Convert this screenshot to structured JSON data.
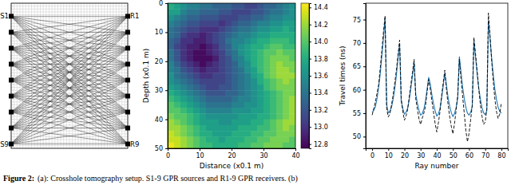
{
  "chart_data": [
    {
      "type": "crosshole",
      "xlim": [
        0,
        40
      ],
      "ylim": [
        0,
        50
      ],
      "grid": true,
      "tick_labels": false,
      "xticks": [
        0,
        1,
        2,
        3,
        4,
        5,
        6,
        7,
        8,
        9,
        10,
        11,
        12,
        13,
        14,
        15,
        16,
        17,
        18,
        19,
        20,
        21,
        22,
        23,
        24,
        25,
        26,
        27,
        28,
        29,
        30,
        31,
        32,
        33,
        34,
        35,
        36,
        37,
        38,
        39,
        40
      ],
      "yticks": [
        0,
        1,
        2,
        3,
        4,
        5,
        6,
        7,
        8,
        9,
        10,
        11,
        12,
        13,
        14,
        15,
        16,
        17,
        18,
        19,
        20,
        21,
        22,
        23,
        24,
        25,
        26,
        27,
        28,
        29,
        30,
        31,
        32,
        33,
        34,
        35,
        36,
        37,
        38,
        39,
        40,
        41,
        42,
        43,
        44,
        45,
        46,
        47,
        48,
        49,
        50
      ],
      "sources": [
        {
          "label": "S1",
          "depth": 4.5
        },
        {
          "label": null,
          "depth": 10
        },
        {
          "label": null,
          "depth": 15.5
        },
        {
          "label": null,
          "depth": 21
        },
        {
          "label": null,
          "depth": 26.5
        },
        {
          "label": null,
          "depth": 32
        },
        {
          "label": null,
          "depth": 37.5
        },
        {
          "label": null,
          "depth": 43
        },
        {
          "label": "S9",
          "depth": 48.5
        }
      ],
      "receivers": [
        {
          "label": "R1",
          "depth": 4.5
        },
        {
          "label": null,
          "depth": 10
        },
        {
          "label": null,
          "depth": 15.5
        },
        {
          "label": null,
          "depth": 21
        },
        {
          "label": null,
          "depth": 26.5
        },
        {
          "label": null,
          "depth": 32
        },
        {
          "label": null,
          "depth": 37.5
        },
        {
          "label": null,
          "depth": 43
        },
        {
          "label": "R9",
          "depth": 48.5
        }
      ]
    },
    {
      "type": "heatmap",
      "xlabel": "Distance (x0.1 m)",
      "ylabel": "Depth (x0.1 m)",
      "xlim": [
        0,
        40
      ],
      "ylim": [
        0,
        50
      ],
      "xticks": [
        0,
        10,
        20,
        30,
        40
      ],
      "yticks": [
        0,
        10,
        20,
        30,
        40,
        50
      ],
      "colorbar": {
        "range": [
          12.75,
          14.45
        ],
        "ticks": [
          12.8,
          {
            "value": 13,
            "label": "13.0"
          },
          13.2,
          13.4,
          13.6,
          13.8,
          {
            "value": 14,
            "label": "14.0"
          },
          14.2,
          14.4
        ]
      },
      "cells": [
        [
          13.8,
          13.7,
          13.6,
          13.5,
          13.5,
          13.4,
          13.4,
          13.3,
          13.3,
          13.3,
          13.2,
          13.2,
          13.1,
          13.1,
          13.2,
          13.3,
          13.3,
          13.4,
          13.5,
          13.6
        ],
        [
          13.7,
          13.7,
          13.5,
          13.4,
          13.4,
          13.3,
          13.3,
          13.3,
          13.2,
          13.2,
          13.1,
          13.1,
          13.1,
          13.2,
          13.2,
          13.3,
          13.4,
          13.4,
          13.5,
          13.6
        ],
        [
          13.6,
          13.5,
          13.4,
          13.3,
          13.3,
          13.2,
          13.2,
          13.2,
          13.1,
          13.1,
          13.1,
          13.2,
          13.2,
          13.3,
          13.3,
          13.4,
          13.5,
          13.5,
          13.6,
          13.6
        ],
        [
          13.5,
          13.4,
          13.3,
          13.2,
          13.2,
          13.1,
          13.1,
          13.1,
          13.0,
          13.1,
          13.2,
          13.3,
          13.3,
          13.4,
          13.5,
          13.5,
          13.6,
          13.6,
          13.7,
          13.7
        ],
        [
          13.4,
          13.3,
          13.2,
          13.1,
          13.1,
          13.0,
          13.0,
          13.0,
          13.1,
          13.2,
          13.3,
          13.4,
          13.4,
          13.5,
          13.6,
          13.6,
          13.7,
          13.7,
          13.8,
          13.7
        ],
        [
          13.4,
          13.3,
          13.1,
          13.0,
          13.0,
          12.9,
          13.0,
          13.1,
          13.2,
          13.3,
          13.4,
          13.5,
          13.5,
          13.6,
          13.7,
          13.7,
          13.8,
          13.8,
          13.8,
          13.8
        ],
        [
          13.3,
          13.2,
          13.0,
          13.0,
          12.9,
          12.9,
          13.0,
          13.1,
          13.2,
          13.4,
          13.5,
          13.5,
          13.6,
          13.7,
          13.8,
          13.8,
          13.9,
          13.9,
          13.9,
          13.8
        ],
        [
          13.3,
          13.1,
          13.0,
          12.9,
          12.9,
          12.8,
          12.9,
          13.0,
          13.2,
          13.3,
          13.5,
          13.6,
          13.7,
          13.8,
          13.8,
          13.9,
          14.0,
          14.0,
          13.9,
          13.9
        ],
        [
          13.4,
          13.2,
          13.0,
          12.9,
          12.8,
          12.8,
          12.9,
          13.0,
          13.1,
          13.3,
          13.4,
          13.6,
          13.7,
          13.8,
          13.9,
          14.0,
          14.0,
          14.1,
          14.0,
          14.0
        ],
        [
          13.4,
          13.2,
          13.0,
          12.9,
          12.8,
          12.8,
          12.8,
          12.9,
          13.1,
          13.2,
          13.4,
          13.5,
          13.7,
          13.8,
          13.9,
          14.0,
          14.1,
          14.1,
          14.1,
          14.0
        ],
        [
          13.5,
          13.3,
          13.1,
          13.0,
          12.9,
          12.8,
          12.9,
          13.0,
          13.1,
          13.2,
          13.3,
          13.5,
          13.6,
          13.8,
          13.9,
          14.0,
          14.1,
          14.2,
          14.1,
          14.1
        ],
        [
          13.5,
          13.4,
          13.2,
          13.1,
          13.0,
          12.9,
          13.0,
          13.0,
          13.1,
          13.2,
          13.3,
          13.4,
          13.6,
          13.7,
          13.9,
          14.0,
          14.1,
          14.2,
          14.2,
          14.1
        ],
        [
          13.6,
          13.4,
          13.3,
          13.2,
          13.1,
          13.0,
          13.0,
          13.1,
          13.1,
          13.2,
          13.3,
          13.4,
          13.5,
          13.7,
          13.8,
          14.0,
          14.1,
          14.2,
          14.2,
          14.2
        ],
        [
          13.6,
          13.5,
          13.4,
          13.3,
          13.2,
          13.1,
          13.1,
          13.1,
          13.1,
          13.2,
          13.3,
          13.4,
          13.5,
          13.6,
          13.8,
          13.9,
          14.0,
          14.1,
          14.2,
          14.1
        ],
        [
          13.7,
          13.6,
          13.5,
          13.4,
          13.3,
          13.2,
          13.1,
          13.1,
          13.2,
          13.2,
          13.3,
          13.4,
          13.5,
          13.6,
          13.7,
          13.9,
          14.0,
          14.1,
          14.1,
          14.1
        ],
        [
          13.8,
          13.7,
          13.6,
          13.5,
          13.4,
          13.3,
          13.2,
          13.2,
          13.2,
          13.3,
          13.3,
          13.4,
          13.5,
          13.6,
          13.7,
          13.8,
          13.9,
          14.0,
          14.1,
          14.1
        ],
        [
          13.9,
          13.8,
          13.7,
          13.6,
          13.5,
          13.4,
          13.3,
          13.3,
          13.3,
          13.3,
          13.4,
          13.5,
          13.5,
          13.6,
          13.7,
          13.8,
          13.9,
          14.0,
          14.1,
          14.2
        ],
        [
          14.0,
          13.9,
          13.8,
          13.7,
          13.6,
          13.5,
          13.4,
          13.4,
          13.4,
          13.4,
          13.5,
          13.5,
          13.6,
          13.6,
          13.7,
          13.8,
          13.9,
          14.0,
          14.1,
          14.2
        ],
        [
          14.0,
          14.0,
          13.9,
          13.8,
          13.7,
          13.6,
          13.5,
          13.5,
          13.5,
          13.5,
          13.6,
          13.6,
          13.6,
          13.7,
          13.7,
          13.8,
          13.9,
          14.0,
          14.1,
          14.2
        ],
        [
          14.1,
          14.0,
          14.0,
          13.9,
          13.8,
          13.7,
          13.6,
          13.6,
          13.6,
          13.6,
          13.6,
          13.7,
          13.7,
          13.7,
          13.8,
          13.8,
          13.9,
          14.0,
          14.1,
          14.2
        ],
        [
          14.2,
          14.1,
          14.0,
          13.9,
          13.8,
          13.7,
          13.7,
          13.7,
          13.6,
          13.6,
          13.7,
          13.7,
          13.7,
          13.8,
          13.8,
          13.9,
          14.0,
          14.1,
          14.2,
          14.2
        ],
        [
          14.2,
          14.2,
          14.1,
          14.0,
          13.9,
          13.8,
          13.7,
          13.7,
          13.7,
          13.7,
          13.7,
          13.8,
          13.8,
          13.8,
          13.9,
          13.9,
          14.0,
          14.1,
          14.2,
          14.1
        ],
        [
          14.3,
          14.2,
          14.1,
          14.0,
          13.9,
          13.8,
          13.8,
          13.7,
          13.7,
          13.7,
          13.8,
          13.8,
          13.8,
          13.9,
          13.9,
          14.0,
          14.0,
          14.1,
          14.1,
          14.1
        ],
        [
          14.3,
          14.3,
          14.2,
          14.1,
          14.0,
          13.9,
          13.8,
          13.8,
          13.7,
          13.8,
          13.8,
          13.8,
          13.9,
          13.9,
          14.0,
          14.0,
          14.1,
          14.1,
          14.1,
          14.0
        ],
        [
          14.4,
          14.3,
          14.2,
          14.1,
          14.0,
          13.9,
          13.9,
          13.8,
          13.8,
          13.8,
          13.8,
          13.9,
          13.9,
          14.0,
          14.0,
          14.1,
          14.1,
          14.1,
          14.0,
          14.0
        ]
      ]
    },
    {
      "type": "line",
      "xlabel": "Ray number",
      "ylabel": "Travel times (ns)",
      "xlim": [
        -4,
        84
      ],
      "ylim": [
        47.5,
        78.5
      ],
      "xticks": [
        0,
        10,
        20,
        30,
        40,
        50,
        60,
        70,
        80
      ],
      "yticks": [
        50,
        55,
        60,
        65,
        70,
        75
      ],
      "x": [
        0,
        1,
        2,
        3,
        4,
        5,
        6,
        7,
        8,
        9,
        10,
        11,
        12,
        13,
        14,
        15,
        16,
        17,
        18,
        19,
        20,
        21,
        22,
        23,
        24,
        25,
        26,
        27,
        28,
        29,
        30,
        31,
        32,
        33,
        34,
        35,
        36,
        37,
        38,
        39,
        40,
        41,
        42,
        43,
        44,
        45,
        46,
        47,
        48,
        49,
        50,
        51,
        52,
        53,
        54,
        55,
        56,
        57,
        58,
        59,
        60,
        61,
        62,
        63,
        64,
        65,
        66,
        67,
        68,
        69,
        70,
        71,
        72,
        73,
        74,
        75,
        76,
        77,
        78,
        79,
        80
      ],
      "series": [
        {
          "color": "#1f77b4",
          "line_style": "solid",
          "values": [
            55.2,
            55.6,
            56.4,
            58.1,
            60.5,
            63.4,
            67.2,
            71.0,
            75.3,
            56.8,
            55.1,
            55.4,
            56.3,
            58.0,
            60.2,
            63.1,
            66.6,
            69.8,
            57.5,
            56.0,
            54.8,
            55.2,
            56.1,
            57.9,
            60.4,
            63.0,
            65.9,
            59.0,
            57.2,
            55.6,
            54.6,
            54.9,
            55.8,
            57.6,
            60.1,
            62.7,
            61.2,
            58.9,
            57.0,
            55.5,
            54.4,
            54.8,
            56.0,
            58.2,
            60.8,
            63.6,
            61.0,
            58.4,
            56.5,
            55.1,
            54.3,
            54.9,
            56.2,
            58.3,
            67.1,
            63.8,
            60.6,
            58.2,
            56.3,
            55.0,
            54.6,
            55.2,
            56.4,
            70.4,
            67.0,
            63.5,
            60.4,
            58.1,
            56.2,
            55.1,
            54.7,
            55.5,
            74.8,
            70.9,
            66.8,
            63.2,
            60.1,
            57.9,
            56.3,
            55.4,
            55.0
          ]
        },
        {
          "color": "#000000",
          "line_style": "dashed",
          "values": [
            54.6,
            56.0,
            57.4,
            59.2,
            61.0,
            64.6,
            68.4,
            72.3,
            75.8,
            56.0,
            54.2,
            54.9,
            56.8,
            58.9,
            61.5,
            64.2,
            67.4,
            70.6,
            58.2,
            55.3,
            53.5,
            54.4,
            55.8,
            58.6,
            61.2,
            63.8,
            66.5,
            58.1,
            55.9,
            53.8,
            52.6,
            53.9,
            55.0,
            56.4,
            59.4,
            62.2,
            60.1,
            57.6,
            55.2,
            52.8,
            51.0,
            52.9,
            55.3,
            58.7,
            61.5,
            64.2,
            60.1,
            56.9,
            54.3,
            52.2,
            50.6,
            52.8,
            55.6,
            58.9,
            66.5,
            62.4,
            58.7,
            55.1,
            51.4,
            48.9,
            50.7,
            53.6,
            56.8,
            71.2,
            67.8,
            64.1,
            60.2,
            56.9,
            54.4,
            52.6,
            53.1,
            55.9,
            76.4,
            71.6,
            66.2,
            61.8,
            58.0,
            55.3,
            53.9,
            54.8,
            57.2
          ]
        }
      ]
    }
  ],
  "caption": {
    "label": "Figure 2:",
    "text": "(a): Crosshole tomography setup. S1-9 GPR sources and R1-9 GPR receivers. (b)"
  }
}
